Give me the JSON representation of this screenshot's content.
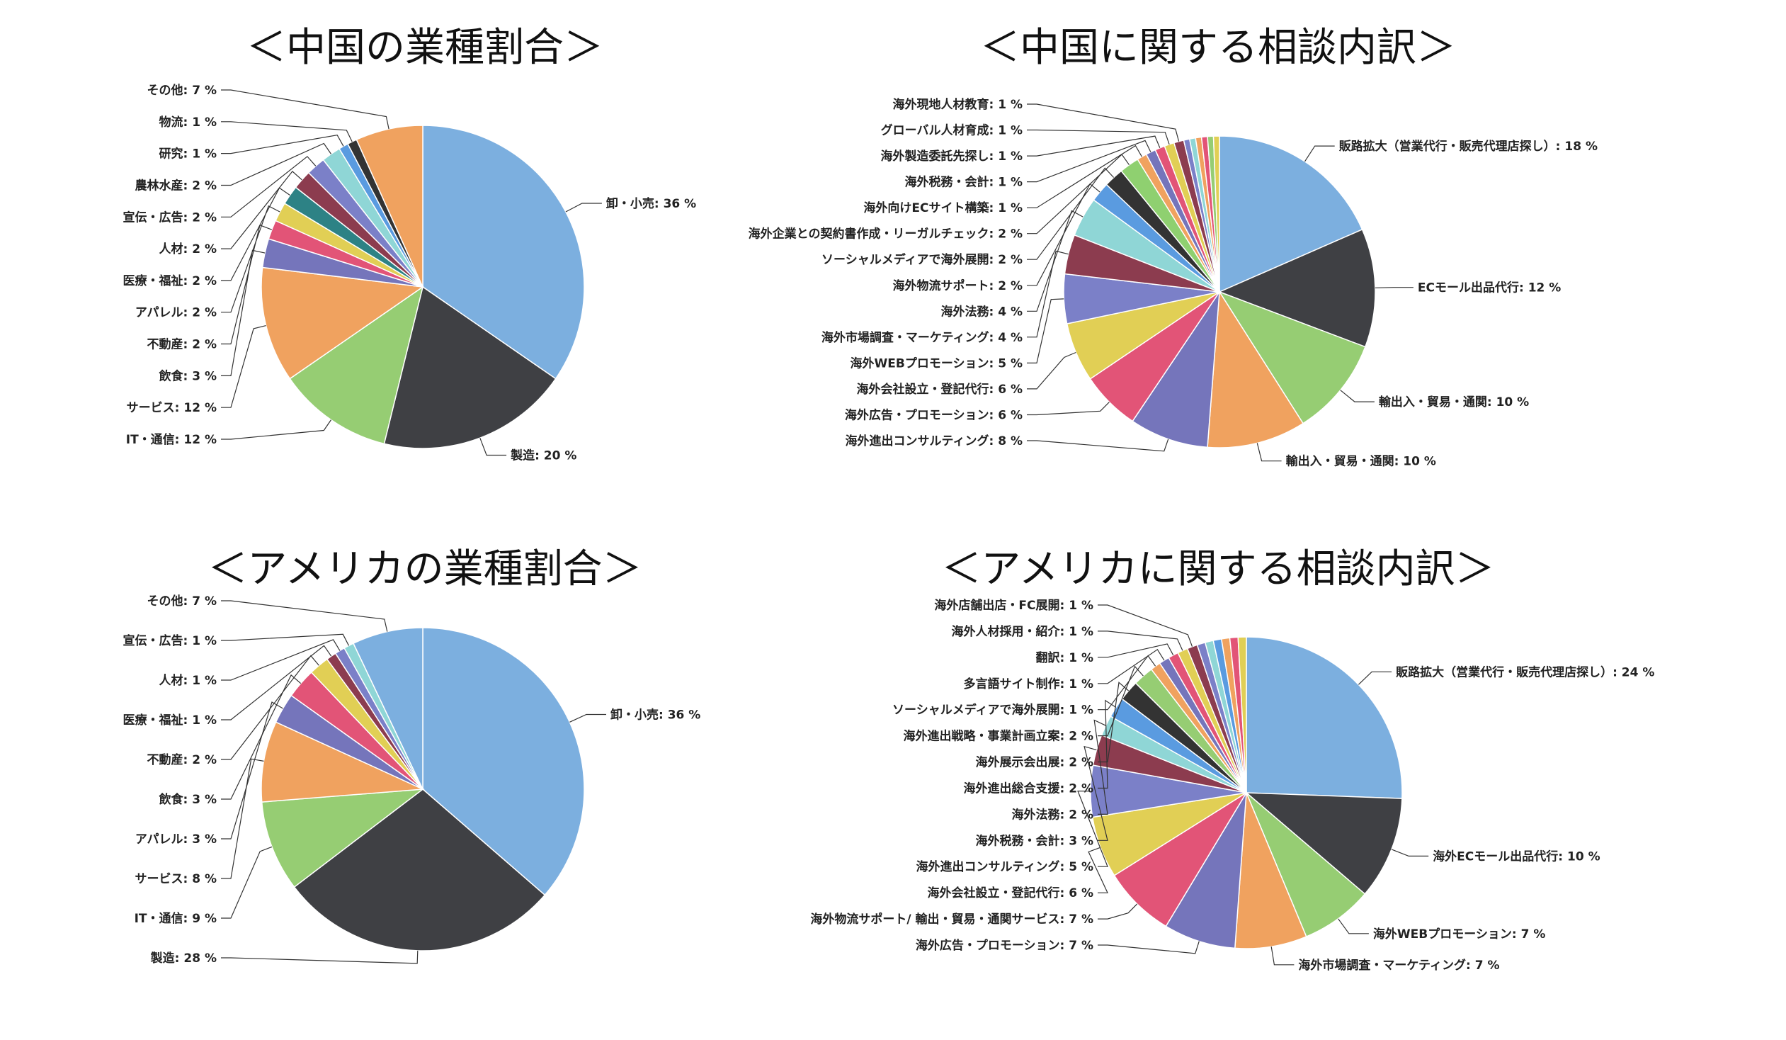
{
  "chart_data": [
    {
      "type": "pie",
      "title": "＜中国の業種割合＞",
      "slices": [
        {
          "label": "卸・小売: 36 %",
          "value": 36,
          "color": "#7cafdf"
        },
        {
          "label": "製造: 20 %",
          "value": 20,
          "color": "#3f4044"
        },
        {
          "label": "IT・通信: 12 %",
          "value": 12,
          "color": "#96cd73"
        },
        {
          "label": "サービス: 12 %",
          "value": 12,
          "color": "#f0a25f"
        },
        {
          "label": "飲食: 3 %",
          "value": 3,
          "color": "#7575bb"
        },
        {
          "label": "不動産: 2 %",
          "value": 2,
          "color": "#e25477"
        },
        {
          "label": "アパレル: 2 %",
          "value": 2,
          "color": "#e1cf55"
        },
        {
          "label": "医療・福祉: 2 %",
          "value": 2,
          "color": "#2d8285"
        },
        {
          "label": "人材: 2 %",
          "value": 2,
          "color": "#8c3c4f"
        },
        {
          "label": "宣伝・広告: 2 %",
          "value": 2,
          "color": "#7b80c8"
        },
        {
          "label": "農林水産: 2 %",
          "value": 2,
          "color": "#8fd6d6"
        },
        {
          "label": "研究: 1 %",
          "value": 1,
          "color": "#5a9be0"
        },
        {
          "label": "物流: 1 %",
          "value": 1,
          "color": "#333333"
        },
        {
          "label": "その他: 7 %",
          "value": 7,
          "color": "#f0a25f"
        }
      ]
    },
    {
      "type": "pie",
      "title": "＜中国に関する相談内訳＞",
      "slices": [
        {
          "label": "販路拡大（営業代行・販売代理店探し）: 18 %",
          "value": 18,
          "color": "#7cafdf"
        },
        {
          "label": "ECモール出品代行: 12 %",
          "value": 12,
          "color": "#3f4044"
        },
        {
          "label": "輸出入・貿易・通関: 10 %",
          "value": 10,
          "color": "#96cd73"
        },
        {
          "label": "輸出入・貿易・通関: 10 %",
          "value": 10,
          "color": "#f0a25f"
        },
        {
          "label": "海外進出コンサルティング: 8 %",
          "value": 8,
          "color": "#7575bb"
        },
        {
          "label": "海外広告・プロモーション: 6 %",
          "value": 6,
          "color": "#e25477"
        },
        {
          "label": "海外会社設立・登記代行: 6 %",
          "value": 6,
          "color": "#e1cf55"
        },
        {
          "label": "海外WEBプロモーション: 5 %",
          "value": 5,
          "color": "#7b80c8"
        },
        {
          "label": "海外市場調査・マーケティング: 4 %",
          "value": 4,
          "color": "#8c3c4f"
        },
        {
          "label": "海外法務: 4 %",
          "value": 4,
          "color": "#8fd6d6"
        },
        {
          "label": "海外物流サポート: 2 %",
          "value": 2,
          "color": "#5a9be0"
        },
        {
          "label": "ソーシャルメディアで海外展開: 2 %",
          "value": 2,
          "color": "#333333"
        },
        {
          "label": "海外企業との契約書作成・リーガルチェック: 2 %",
          "value": 2,
          "color": "#8fd070"
        },
        {
          "label": "海外向けECサイト構築: 1 %",
          "value": 1,
          "color": "#f0a25f"
        },
        {
          "label": "海外税務・会計: 1 %",
          "value": 1,
          "color": "#7575bb"
        },
        {
          "label": "海外製造委託先探し: 1 %",
          "value": 1,
          "color": "#e25477"
        },
        {
          "label": "グローバル人材育成: 1 %",
          "value": 1,
          "color": "#e1cf55"
        },
        {
          "label": "海外現地人材教育: 1 %",
          "value": 1,
          "color": "#8c3c4f"
        },
        {
          "label": "",
          "value": 0.6,
          "color": "#7b80c8"
        },
        {
          "label": "",
          "value": 0.6,
          "color": "#8fd6d6"
        },
        {
          "label": "",
          "value": 0.6,
          "color": "#f0a25f"
        },
        {
          "label": "",
          "value": 0.6,
          "color": "#e25477"
        },
        {
          "label": "",
          "value": 0.6,
          "color": "#96cd73"
        },
        {
          "label": "",
          "value": 0.6,
          "color": "#e1cf55"
        }
      ]
    },
    {
      "type": "pie",
      "title": "＜アメリカの業種割合＞",
      "slices": [
        {
          "label": "卸・小売: 36 %",
          "value": 36,
          "color": "#7cafdf"
        },
        {
          "label": "製造: 28 %",
          "value": 28,
          "color": "#3f4044"
        },
        {
          "label": "IT・通信: 9 %",
          "value": 9,
          "color": "#96cd73"
        },
        {
          "label": "サービス: 8 %",
          "value": 8,
          "color": "#f0a25f"
        },
        {
          "label": "アパレル: 3 %",
          "value": 3,
          "color": "#7575bb"
        },
        {
          "label": "飲食: 3 %",
          "value": 3,
          "color": "#e25477"
        },
        {
          "label": "不動産: 2 %",
          "value": 2,
          "color": "#e1cf55"
        },
        {
          "label": "医療・福祉: 1 %",
          "value": 1,
          "color": "#8c3c4f"
        },
        {
          "label": "人材: 1 %",
          "value": 1,
          "color": "#7b80c8"
        },
        {
          "label": "宣伝・広告: 1 %",
          "value": 1,
          "color": "#8fd6d6"
        },
        {
          "label": "その他: 7 %",
          "value": 7,
          "color": "#7cafdf"
        }
      ]
    },
    {
      "type": "pie",
      "title": "＜アメリカに関する相談内訳＞",
      "slices": [
        {
          "label": "販路拡大（営業代行・販売代理店探し）: 24 %",
          "value": 24,
          "color": "#7cafdf"
        },
        {
          "label": "海外ECモール出品代行: 10 %",
          "value": 10,
          "color": "#3f4044"
        },
        {
          "label": "海外WEBプロモーション: 7 %",
          "value": 7,
          "color": "#96cd73"
        },
        {
          "label": "海外市場調査・マーケティング: 7 %",
          "value": 7,
          "color": "#f0a25f"
        },
        {
          "label": "海外広告・プロモーション: 7 %",
          "value": 7,
          "color": "#7575bb"
        },
        {
          "label": "海外物流サポート/ 輸出・貿易・通関サービス: 7 %",
          "value": 7,
          "color": "#e25477"
        },
        {
          "label": "海外会社設立・登記代行: 6 %",
          "value": 6,
          "color": "#e1cf55"
        },
        {
          "label": "海外進出コンサルティング: 5 %",
          "value": 5,
          "color": "#7b80c8"
        },
        {
          "label": "海外税務・会計: 3 %",
          "value": 3,
          "color": "#8c3c4f"
        },
        {
          "label": "海外法務: 2 %",
          "value": 2,
          "color": "#8fd6d6"
        },
        {
          "label": "海外進出総合支援: 2 %",
          "value": 2,
          "color": "#5a9be0"
        },
        {
          "label": "海外展示会出展: 2 %",
          "value": 2,
          "color": "#333333"
        },
        {
          "label": "海外進出戦略・事業計画立案: 2 %",
          "value": 2,
          "color": "#96cd73"
        },
        {
          "label": "ソーシャルメディアで海外展開: 1 %",
          "value": 1,
          "color": "#f0a25f"
        },
        {
          "label": "多言語サイト制作: 1 %",
          "value": 1,
          "color": "#7575bb"
        },
        {
          "label": "翻訳: 1 %",
          "value": 1,
          "color": "#e25477"
        },
        {
          "label": "海外人材採用・紹介: 1 %",
          "value": 1,
          "color": "#e1cf55"
        },
        {
          "label": "海外店舗出店・FC展開: 1 %",
          "value": 1,
          "color": "#8c3c4f"
        },
        {
          "label": "",
          "value": 0.8,
          "color": "#7b80c8"
        },
        {
          "label": "",
          "value": 0.8,
          "color": "#8fd6d6"
        },
        {
          "label": "",
          "value": 0.8,
          "color": "#5a9be0"
        },
        {
          "label": "",
          "value": 0.8,
          "color": "#f0a25f"
        },
        {
          "label": "",
          "value": 0.8,
          "color": "#e25477"
        },
        {
          "label": "",
          "value": 0.8,
          "color": "#e1cf55"
        }
      ]
    }
  ]
}
